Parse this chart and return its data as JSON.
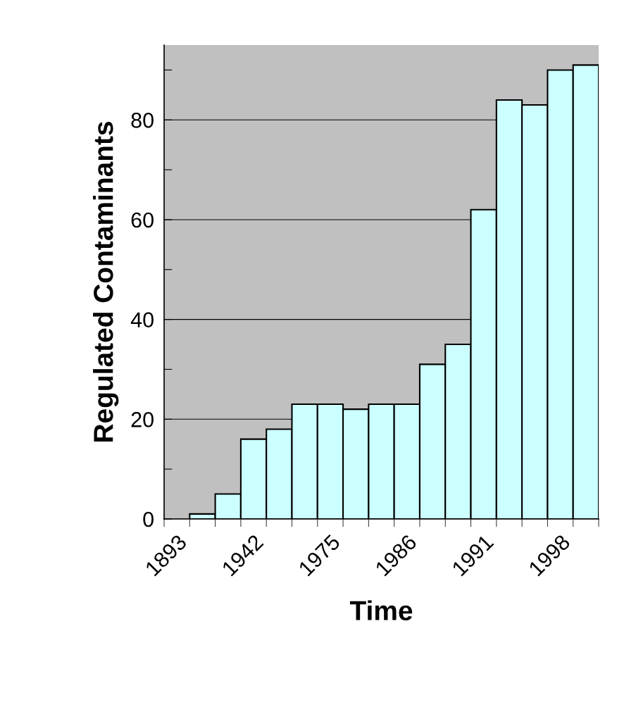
{
  "chart_data": {
    "type": "bar",
    "xlabel": "Time",
    "ylabel": "Regulated Contaminants",
    "categories": [
      "1893",
      null,
      null,
      "1942",
      null,
      null,
      "1975",
      null,
      null,
      "1986",
      null,
      null,
      "1991",
      null,
      null,
      "1998",
      null
    ],
    "values": [
      null,
      1,
      5,
      16,
      18,
      23,
      23,
      22,
      23,
      23,
      31,
      35,
      62,
      84,
      83,
      90,
      91
    ],
    "color": "#ccffff",
    "ylim": [
      0,
      95
    ],
    "yticks": [
      0,
      {
        "value": 10,
        "label": null
      },
      20,
      {
        "value": 30,
        "label": null
      },
      40,
      {
        "value": 50,
        "label": null
      },
      60,
      {
        "value": 70,
        "label": null
      },
      80,
      {
        "value": 90,
        "label": null
      }
    ],
    "grid": "y"
  }
}
